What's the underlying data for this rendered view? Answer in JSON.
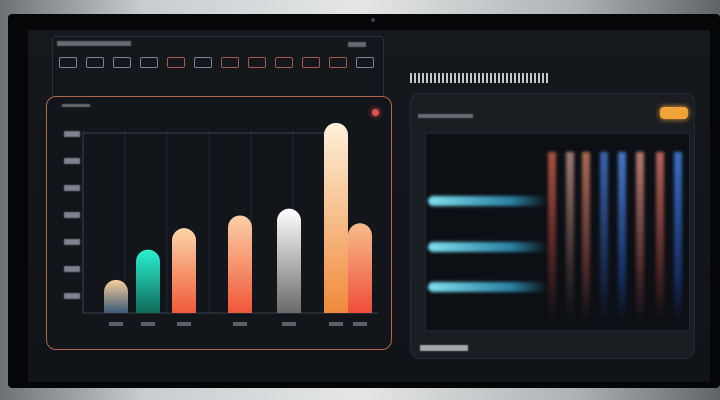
{
  "colors": {
    "panel_border": "#b0664a",
    "accent_badge": "#f3a23a",
    "record_dot": "#e05050"
  },
  "icons": [
    "record-icon",
    "toolbar-icons"
  ],
  "chart_data": {
    "type": "bar",
    "categories": [
      "",
      "",
      "",
      "",
      "",
      "",
      ""
    ],
    "values": [
      34,
      65,
      87,
      100,
      107,
      195,
      92
    ],
    "bar_colors": [
      [
        "#f6cf9b",
        "#3d5a78"
      ],
      [
        "#2af0d0",
        "#0f6a5a"
      ],
      [
        "#fbd5a8",
        "#f05a38"
      ],
      [
        "#fbd0a4",
        "#f0583a"
      ],
      [
        "#ffffff",
        "#6a6a6a"
      ],
      [
        "#fdf1da",
        "#f08a3a"
      ],
      [
        "#f7bc8a",
        "#ef4d3c"
      ]
    ],
    "ylim": [
      0,
      200
    ],
    "grid": true
  }
}
